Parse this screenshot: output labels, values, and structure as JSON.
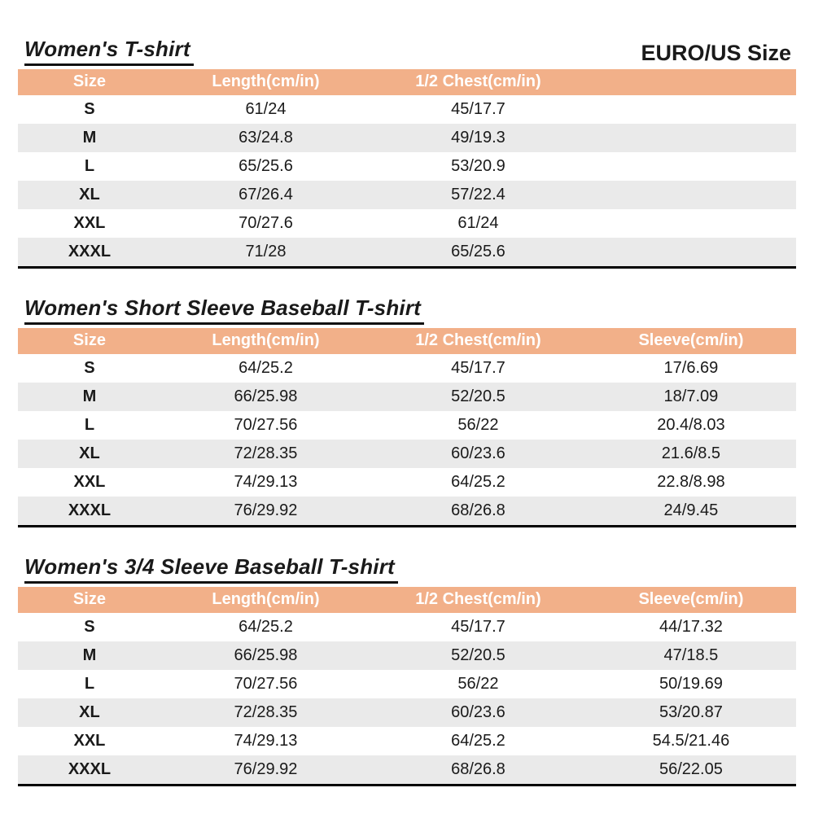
{
  "header": {
    "corner_label": "EURO/US Size"
  },
  "colors": {
    "header_bg": "#F2B089",
    "header_text": "#FFFFFF",
    "row_alt": "#EAEAEA",
    "border": "#000000"
  },
  "chart_data": [
    {
      "type": "table",
      "title": "Women's T-shirt",
      "columns": [
        "Size",
        "Length(cm/in)",
        "1/2 Chest(cm/in)",
        ""
      ],
      "rows": [
        [
          "S",
          "61/24",
          "45/17.7",
          ""
        ],
        [
          "M",
          "63/24.8",
          "49/19.3",
          ""
        ],
        [
          "L",
          "65/25.6",
          "53/20.9",
          ""
        ],
        [
          "XL",
          "67/26.4",
          "57/22.4",
          ""
        ],
        [
          "XXL",
          "70/27.6",
          "61/24",
          ""
        ],
        [
          "XXXL",
          "71/28",
          "65/25.6",
          ""
        ]
      ]
    },
    {
      "type": "table",
      "title": "Women's Short Sleeve Baseball T-shirt",
      "columns": [
        "Size",
        "Length(cm/in)",
        "1/2 Chest(cm/in)",
        "Sleeve(cm/in)"
      ],
      "rows": [
        [
          "S",
          "64/25.2",
          "45/17.7",
          "17/6.69"
        ],
        [
          "M",
          "66/25.98",
          "52/20.5",
          "18/7.09"
        ],
        [
          "L",
          "70/27.56",
          "56/22",
          "20.4/8.03"
        ],
        [
          "XL",
          "72/28.35",
          "60/23.6",
          "21.6/8.5"
        ],
        [
          "XXL",
          "74/29.13",
          "64/25.2",
          "22.8/8.98"
        ],
        [
          "XXXL",
          "76/29.92",
          "68/26.8",
          "24/9.45"
        ]
      ]
    },
    {
      "type": "table",
      "title": "Women's 3/4 Sleeve Baseball T-shirt",
      "columns": [
        "Size",
        "Length(cm/in)",
        "1/2 Chest(cm/in)",
        "Sleeve(cm/in)"
      ],
      "rows": [
        [
          "S",
          "64/25.2",
          "45/17.7",
          "44/17.32"
        ],
        [
          "M",
          "66/25.98",
          "52/20.5",
          "47/18.5"
        ],
        [
          "L",
          "70/27.56",
          "56/22",
          "50/19.69"
        ],
        [
          "XL",
          "72/28.35",
          "60/23.6",
          "53/20.87"
        ],
        [
          "XXL",
          "74/29.13",
          "64/25.2",
          "54.5/21.46"
        ],
        [
          "XXXL",
          "76/29.92",
          "68/26.8",
          "56/22.05"
        ]
      ]
    }
  ]
}
